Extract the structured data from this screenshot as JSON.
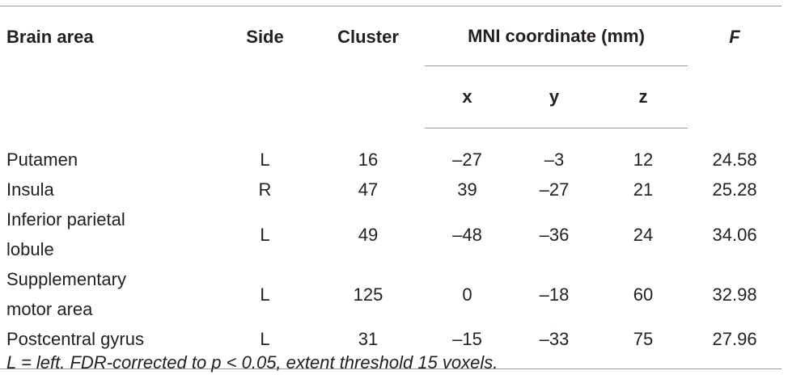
{
  "table": {
    "header": {
      "brain_area": "Brain area",
      "side": "Side",
      "cluster": "Cluster",
      "mni": "MNI coordinate (mm)",
      "x": "x",
      "y": "y",
      "z": "z",
      "f": "F"
    },
    "rows": [
      [
        "Putamen",
        "L",
        "16",
        "–27",
        "–3",
        "12",
        "24.58"
      ],
      [
        "Insula",
        "R",
        "47",
        "39",
        "–27",
        "21",
        "25.28"
      ],
      [
        "Inferior parietal lobule",
        "L",
        "49",
        "–48",
        "–36",
        "24",
        "34.06"
      ],
      [
        "Supplementary motor area",
        "L",
        "125",
        "0",
        "–18",
        "60",
        "32.98"
      ],
      [
        "Postcentral gyrus",
        "L",
        "31",
        "–15",
        "–33",
        "75",
        "27.96"
      ]
    ]
  },
  "footnote": "L = left. FDR-corrected to p < 0.05, extent threshold 15 voxels."
}
